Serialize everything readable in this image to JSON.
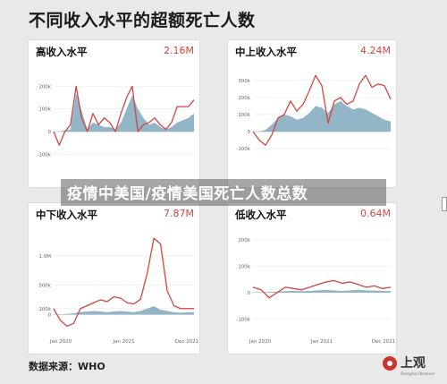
{
  "title": "不同收入水平的超额死亡人数",
  "overlay_text": "疫情中美国/疫情美国死亡人数总数",
  "source": "数据来源：WHO",
  "logo": {
    "text": "上观",
    "subtext": "Shanghai Observer"
  },
  "colors": {
    "line": "#d0473f",
    "area": "#7fa8be",
    "text_accent": "#d0473f"
  },
  "chart_data": [
    {
      "type": "line",
      "title": "高收入水平",
      "total_label": "2.16M",
      "ylim": [
        -150,
        300
      ],
      "y_ticks": [
        {
          "v": 200,
          "label": "200k"
        },
        {
          "v": 100,
          "label": "100k"
        },
        {
          "v": 0,
          "label": "0"
        },
        {
          "v": -100,
          "label": "-100k"
        }
      ],
      "x_ticks": [],
      "series": [
        {
          "kind": "line",
          "values": [
            0,
            -60,
            0,
            30,
            200,
            60,
            0,
            80,
            30,
            60,
            40,
            0,
            80,
            150,
            200,
            0,
            30,
            40,
            60,
            30,
            10,
            40,
            110,
            110,
            110,
            140
          ]
        },
        {
          "kind": "area",
          "values": [
            0,
            0,
            5,
            10,
            170,
            90,
            10,
            40,
            30,
            20,
            20,
            10,
            40,
            100,
            160,
            100,
            60,
            30,
            40,
            20,
            10,
            20,
            40,
            50,
            60,
            80
          ]
        }
      ]
    },
    {
      "type": "line",
      "title": "中上收入水平",
      "total_label": "4.24M",
      "ylim": [
        -200,
        400
      ],
      "y_ticks": [
        {
          "v": 300,
          "label": "300k"
        },
        {
          "v": 200,
          "label": "200k"
        },
        {
          "v": 100,
          "label": "100k"
        },
        {
          "v": 0,
          "label": "0"
        },
        {
          "v": -100,
          "label": "-100k"
        }
      ],
      "x_ticks": [],
      "series": [
        {
          "kind": "line",
          "values": [
            0,
            -50,
            -80,
            -20,
            80,
            100,
            180,
            120,
            160,
            240,
            330,
            270,
            50,
            180,
            200,
            160,
            180,
            280,
            330,
            260,
            280,
            270,
            190
          ]
        },
        {
          "kind": "area",
          "values": [
            0,
            0,
            10,
            40,
            80,
            100,
            90,
            70,
            80,
            110,
            150,
            140,
            110,
            160,
            180,
            150,
            130,
            140,
            130,
            110,
            90,
            70,
            60
          ]
        }
      ]
    },
    {
      "type": "line",
      "title": "中下收入水平",
      "total_label": "7.87M",
      "ylim": [
        -300,
        1500
      ],
      "y_ticks": [
        {
          "v": 1000,
          "label": "1.0M"
        },
        {
          "v": 500,
          "label": "500k"
        },
        {
          "v": 100,
          "label": "100k"
        },
        {
          "v": 0,
          "label": "0"
        }
      ],
      "x_ticks": [
        "Jan 2020",
        "Jan 2021",
        "Dec 2021"
      ],
      "series": [
        {
          "kind": "line",
          "values": [
            100,
            -100,
            -200,
            -150,
            100,
            150,
            200,
            250,
            220,
            300,
            280,
            200,
            180,
            260,
            700,
            1300,
            1200,
            400,
            150,
            100,
            100,
            100
          ]
        },
        {
          "kind": "area",
          "values": [
            0,
            0,
            10,
            20,
            40,
            50,
            60,
            50,
            40,
            50,
            60,
            50,
            40,
            60,
            100,
            140,
            80,
            60,
            40,
            30,
            40,
            40
          ]
        }
      ]
    },
    {
      "type": "line",
      "title": "低收入水平",
      "total_label": "0.64M",
      "ylim": [
        -150,
        250
      ],
      "y_ticks": [
        {
          "v": 200,
          "label": "200k"
        },
        {
          "v": 100,
          "label": "100k"
        },
        {
          "v": 0,
          "label": "0"
        },
        {
          "v": -100,
          "label": "-100k"
        }
      ],
      "x_ticks": [
        "Jan 2020",
        "Jan 2021",
        "Dec 2021"
      ],
      "series": [
        {
          "kind": "line",
          "values": [
            20,
            10,
            -20,
            0,
            20,
            15,
            10,
            20,
            30,
            40,
            45,
            35,
            40,
            30,
            20,
            25,
            15,
            20
          ]
        },
        {
          "kind": "area",
          "values": [
            0,
            0,
            2,
            3,
            5,
            6,
            5,
            6,
            8,
            10,
            8,
            6,
            8,
            10,
            8,
            7,
            6,
            5
          ]
        }
      ]
    }
  ]
}
